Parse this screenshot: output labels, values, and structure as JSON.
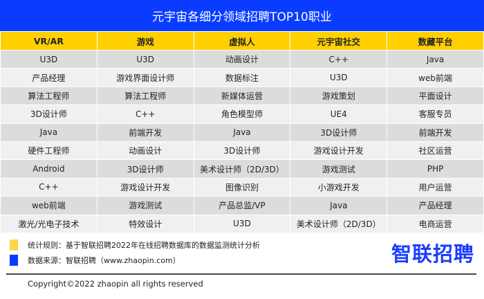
{
  "title": "元宇宙各细分领域招聘TOP10职业",
  "columns": [
    "VR/AR",
    "游戏",
    "虚拟人",
    "元宇宙社交",
    "数藏平台"
  ],
  "rows": [
    [
      "U3D",
      "U3D",
      "动画设计",
      "C++",
      "Java"
    ],
    [
      "产品经理",
      "游戏界面设计师",
      "数据标注",
      "U3D",
      "web前端"
    ],
    [
      "算法工程师",
      "算法工程师",
      "新媒体运营",
      "游戏策划",
      "平面设计"
    ],
    [
      "3D设计师",
      "C++",
      "角色模型师",
      "UE4",
      "客服专员"
    ],
    [
      "Java",
      "前端开发",
      "Java",
      "3D设计师",
      "前端开发"
    ],
    [
      "硬件工程师",
      "动画设计",
      "3D设计师",
      "游戏设计开发",
      "社区运营"
    ],
    [
      "Android",
      "3D设计师",
      "美术设计师（2D/3D）",
      "游戏测试",
      "PHP"
    ],
    [
      "C++",
      "游戏设计开发",
      "图像识别",
      "小游戏开发",
      "用户运营"
    ],
    [
      "web前端",
      "游戏测试",
      "产品总监/VP",
      "Java",
      "产品经理"
    ],
    [
      "激光/光电子技术",
      "特效设计",
      "U3D",
      "美术设计师（2D/3D）",
      "电商运营"
    ]
  ],
  "legend": {
    "rule": "统计规则：基于智联招聘2022年在线招聘数据库的数据监测统计分析",
    "source": "数据来源：智联招聘（www.zhaopin.com）",
    "rule_color": "#ffd54a",
    "source_color": "#0a3cff"
  },
  "logo": "智联招聘",
  "copyright": "Copyright©2022 zhaopin all rights reserved",
  "colors": {
    "title_bg": "#0a3cff",
    "header_bg": "#ffd000"
  }
}
